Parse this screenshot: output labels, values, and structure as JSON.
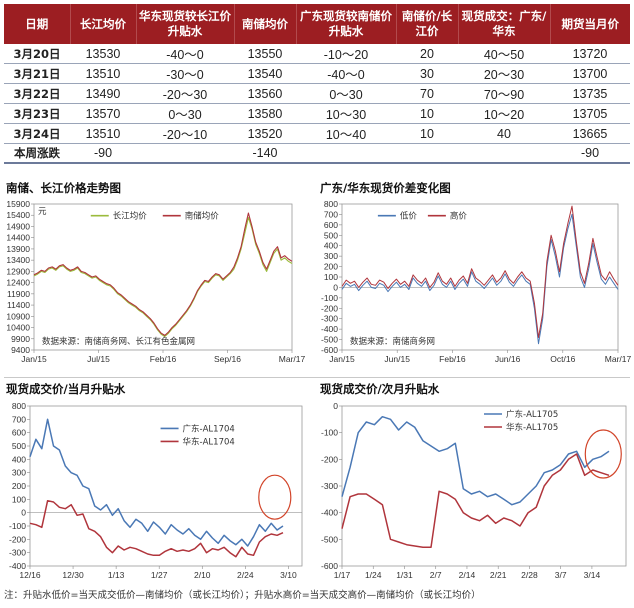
{
  "table": {
    "headers": [
      "日期",
      "长江均价",
      "华东现货较长江价升贴水",
      "南储均价",
      "广东现货较南储价升贴水",
      "南储价/长江价",
      "现货成交：广东/华东",
      "期货当月价"
    ],
    "rows": [
      [
        "3月20日",
        "13530",
        "-40～0",
        "13550",
        "-10～20",
        "20",
        "40～50",
        "13720"
      ],
      [
        "3月21日",
        "13510",
        "-30～0",
        "13540",
        "-40～0",
        "30",
        "20～30",
        "13700"
      ],
      [
        "3月22日",
        "13490",
        "-20～30",
        "13560",
        "0～30",
        "70",
        "70～90",
        "13735"
      ],
      [
        "3月23日",
        "13570",
        "0～30",
        "13580",
        "10～30",
        "10",
        "10～20",
        "13705"
      ],
      [
        "3月24日",
        "13510",
        "-20～10",
        "13520",
        "10～40",
        "10",
        "40",
        "13665"
      ],
      [
        "本周涨跌",
        "-90",
        "",
        "-140",
        "",
        "",
        "",
        "-90"
      ]
    ]
  },
  "footer_note": "注：升贴水低价=当天成交低价—南储均价（或长江均价）；升贴水高价=当天成交高价—南储均价（或长江均价）",
  "chart_data": [
    {
      "id": "nanchu-changjiang",
      "type": "line",
      "title": "南储、长江价格走势图",
      "unit_label": "元",
      "x_ticks": [
        "Jan/15",
        "Jul/15",
        "Feb/16",
        "Sep/16",
        "Mar/17"
      ],
      "y_ticks": [
        9400,
        9900,
        10400,
        10900,
        11400,
        11900,
        12400,
        12900,
        13400,
        13900,
        14400,
        14900,
        15400,
        15900
      ],
      "ylim": [
        9400,
        15900
      ],
      "source_note": "数据来源：南储商务网、长江有色金属网",
      "series": [
        {
          "name": "长江均价",
          "color": "#9bbb3c",
          "values": [
            12700,
            12780,
            12900,
            12850,
            13000,
            13050,
            12950,
            13100,
            13150,
            13000,
            12900,
            12950,
            13050,
            12850,
            12800,
            12700,
            12600,
            12650,
            12500,
            12400,
            12300,
            12250,
            12100,
            11900,
            11800,
            11650,
            11500,
            11400,
            11300,
            11150,
            11050,
            10900,
            10750,
            10550,
            10300,
            10100,
            10000,
            10150,
            10350,
            10500,
            10700,
            10900,
            11100,
            11350,
            11650,
            12000,
            12250,
            12450,
            12400,
            12600,
            12750,
            12700,
            12500,
            12650,
            12800,
            13000,
            13400,
            13900,
            14600,
            15300,
            14800,
            14100,
            13700,
            13200,
            12900,
            13300,
            13700,
            13900,
            13400,
            13500,
            13350,
            13250
          ]
        },
        {
          "name": "南储均价",
          "color": "#b0353c",
          "values": [
            12750,
            12830,
            12950,
            12900,
            13050,
            13100,
            13000,
            13150,
            13200,
            13050,
            12950,
            13000,
            13100,
            12900,
            12850,
            12750,
            12650,
            12700,
            12550,
            12450,
            12350,
            12300,
            12150,
            11950,
            11850,
            11700,
            11550,
            11450,
            11350,
            11200,
            11100,
            10950,
            10800,
            10600,
            10350,
            10150,
            10050,
            10200,
            10400,
            10550,
            10750,
            10950,
            11150,
            11400,
            11700,
            12050,
            12300,
            12500,
            12450,
            12650,
            12800,
            12750,
            12550,
            12700,
            12850,
            13100,
            13500,
            14000,
            14800,
            15500,
            14900,
            14200,
            13800,
            13300,
            13000,
            13400,
            13800,
            14000,
            13500,
            13600,
            13450,
            13350
          ]
        }
      ]
    },
    {
      "id": "guangdong-huadong-spread",
      "type": "line",
      "title": "广东/华东现货价差变化图",
      "x_ticks": [
        "Jan/15",
        "Jun/15",
        "Feb/16",
        "Jun/16",
        "Oct/16",
        "Mar/17"
      ],
      "y_ticks": [
        -600,
        -500,
        -400,
        -300,
        -200,
        -100,
        0,
        100,
        200,
        300,
        400,
        500,
        600,
        700,
        800
      ],
      "ylim": [
        -600,
        800
      ],
      "source_note": "数据来源：南储商务网",
      "series": [
        {
          "name": "低价",
          "color": "#4a78b5",
          "values": [
            -20,
            40,
            10,
            30,
            -30,
            20,
            60,
            0,
            -10,
            40,
            20,
            -40,
            10,
            50,
            0,
            30,
            -20,
            90,
            40,
            10,
            60,
            -30,
            20,
            110,
            30,
            0,
            60,
            -20,
            40,
            80,
            10,
            150,
            60,
            30,
            -10,
            40,
            90,
            20,
            60,
            130,
            50,
            10,
            70,
            120,
            60,
            30,
            -200,
            -540,
            -300,
            200,
            460,
            300,
            100,
            380,
            560,
            700,
            400,
            100,
            0,
            180,
            420,
            240,
            80,
            30,
            100,
            40,
            -20
          ]
        },
        {
          "name": "高价",
          "color": "#b0353c",
          "values": [
            10,
            70,
            40,
            60,
            0,
            50,
            90,
            30,
            20,
            70,
            50,
            -10,
            40,
            80,
            30,
            60,
            10,
            120,
            70,
            40,
            90,
            0,
            50,
            140,
            60,
            30,
            90,
            10,
            70,
            110,
            40,
            180,
            90,
            60,
            20,
            70,
            120,
            50,
            90,
            160,
            80,
            40,
            100,
            150,
            90,
            60,
            -150,
            -480,
            -250,
            250,
            500,
            350,
            150,
            420,
            610,
            780,
            450,
            150,
            40,
            230,
            470,
            290,
            120,
            70,
            150,
            80,
            20
          ]
        }
      ]
    },
    {
      "id": "spot-vs-current-month",
      "type": "line",
      "title": "现货成交价/当月升贴水",
      "x_ticks": [
        "12/16",
        "12/30",
        "1/13",
        "1/27",
        "2/10",
        "2/24",
        "3/10"
      ],
      "y_ticks": [
        -400,
        -300,
        -200,
        -100,
        0,
        100,
        200,
        300,
        400,
        500,
        600,
        700,
        800
      ],
      "ylim": [
        -400,
        800
      ],
      "series": [
        {
          "name": "广东-AL1704",
          "color": "#4a78b5",
          "values": [
            420,
            550,
            480,
            700,
            500,
            470,
            350,
            300,
            280,
            200,
            180,
            50,
            20,
            60,
            -20,
            30,
            -60,
            -110,
            -50,
            -80,
            -140,
            -70,
            -110,
            -160,
            -90,
            -130,
            -160,
            -120,
            -170,
            -200,
            -140,
            -190,
            -230,
            -170,
            -210,
            -240,
            -200,
            -250,
            -180,
            -90,
            -140,
            -80,
            -130,
            -100
          ]
        },
        {
          "name": "华东-AL1704",
          "color": "#b0353c",
          "values": [
            -80,
            -90,
            -110,
            90,
            80,
            40,
            30,
            60,
            -20,
            -10,
            -120,
            -140,
            -180,
            -260,
            -300,
            -250,
            -280,
            -260,
            -270,
            -290,
            -310,
            -320,
            -320,
            -290,
            -270,
            -290,
            -280,
            -290,
            -270,
            -230,
            -300,
            -270,
            -280,
            -260,
            -300,
            -330,
            -260,
            -310,
            -320,
            -220,
            -180,
            -160,
            -170,
            -150
          ]
        }
      ]
    },
    {
      "id": "spot-vs-next-month",
      "type": "line",
      "title": "现货成交价/次月升贴水",
      "x_ticks": [
        "1/17",
        "1/24",
        "1/31",
        "2/7",
        "2/14",
        "2/21",
        "2/28",
        "3/7",
        "3/14"
      ],
      "y_ticks": [
        -600,
        -500,
        -400,
        -300,
        -200,
        -100,
        0
      ],
      "ylim": [
        -600,
        0
      ],
      "series": [
        {
          "name": "广东-AL1705",
          "color": "#4a78b5",
          "values": [
            -340,
            -230,
            -100,
            -60,
            -70,
            -40,
            -50,
            -90,
            -60,
            -80,
            -130,
            -150,
            -170,
            -160,
            -140,
            -310,
            -330,
            -320,
            -340,
            -330,
            -350,
            -370,
            -360,
            -330,
            -300,
            -250,
            -240,
            -220,
            -180,
            -170,
            -230,
            -200,
            -190,
            -170
          ]
        },
        {
          "name": "华东-AL1705",
          "color": "#b0353c",
          "values": [
            -460,
            -340,
            -330,
            -330,
            -350,
            -370,
            -500,
            -510,
            -520,
            -525,
            -530,
            -530,
            -320,
            -330,
            -350,
            -400,
            -420,
            -430,
            -410,
            -440,
            -420,
            -430,
            -450,
            -400,
            -380,
            -300,
            -260,
            -240,
            -200,
            -180,
            -260,
            -240,
            -250,
            -260
          ]
        }
      ]
    }
  ]
}
